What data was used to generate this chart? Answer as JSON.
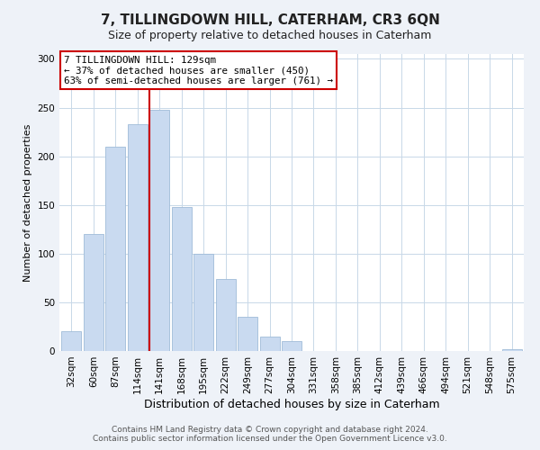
{
  "title": "7, TILLINGDOWN HILL, CATERHAM, CR3 6QN",
  "subtitle": "Size of property relative to detached houses in Caterham",
  "xlabel": "Distribution of detached houses by size in Caterham",
  "ylabel": "Number of detached properties",
  "bar_labels": [
    "32sqm",
    "60sqm",
    "87sqm",
    "114sqm",
    "141sqm",
    "168sqm",
    "195sqm",
    "222sqm",
    "249sqm",
    "277sqm",
    "304sqm",
    "331sqm",
    "358sqm",
    "385sqm",
    "412sqm",
    "439sqm",
    "466sqm",
    "494sqm",
    "521sqm",
    "548sqm",
    "575sqm"
  ],
  "bar_values": [
    20,
    120,
    210,
    233,
    248,
    148,
    100,
    74,
    35,
    15,
    10,
    0,
    0,
    0,
    0,
    0,
    0,
    0,
    0,
    0,
    2
  ],
  "bar_color": "#c9daf0",
  "bar_edgecolor": "#a0bcd8",
  "vline_x_index": 4,
  "vline_color": "#cc0000",
  "ylim": [
    0,
    305
  ],
  "yticks": [
    0,
    50,
    100,
    150,
    200,
    250,
    300
  ],
  "annotation_title": "7 TILLINGDOWN HILL: 129sqm",
  "annotation_line1": "← 37% of detached houses are smaller (450)",
  "annotation_line2": "63% of semi-detached houses are larger (761) →",
  "footer1": "Contains HM Land Registry data © Crown copyright and database right 2024.",
  "footer2": "Contains public sector information licensed under the Open Government Licence v3.0.",
  "bg_color": "#eef2f8",
  "plot_bg_color": "#ffffff",
  "annotation_box_color": "#ffffff",
  "annotation_box_edgecolor": "#cc0000",
  "title_fontsize": 11,
  "subtitle_fontsize": 9,
  "xlabel_fontsize": 9,
  "ylabel_fontsize": 8,
  "tick_fontsize": 7.5,
  "footer_fontsize": 6.5
}
